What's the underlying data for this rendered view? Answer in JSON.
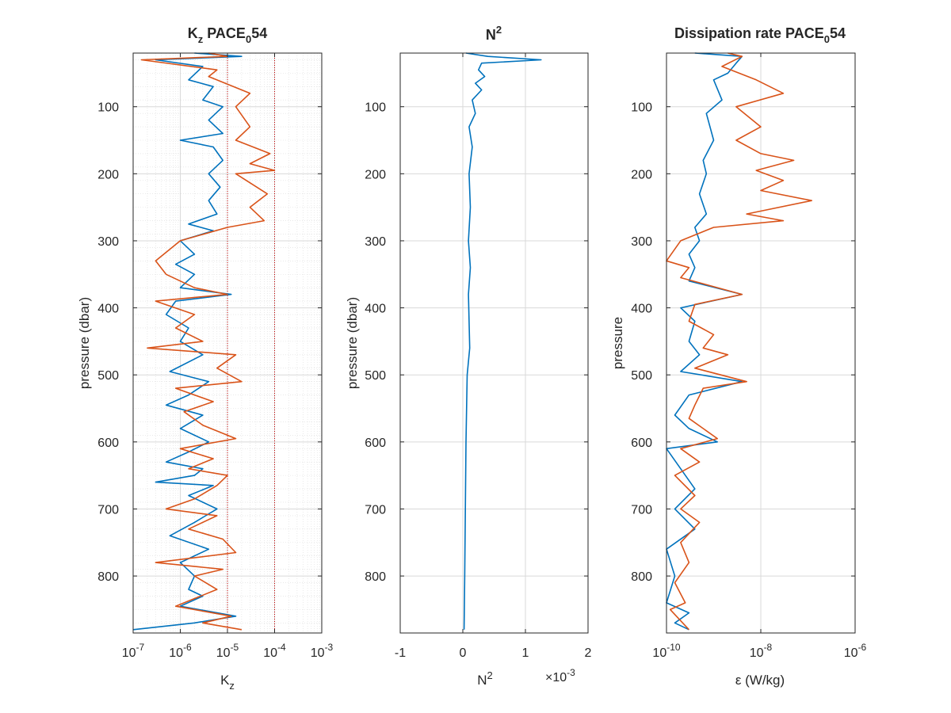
{
  "colors": {
    "series1": "#0072BD",
    "series2": "#D95319",
    "axes": "#262626",
    "grid": "#d9d9d9",
    "ref_lines": "#cc0000"
  },
  "chart_data": [
    {
      "type": "line",
      "title": {
        "main": "K",
        "sub": "z",
        "rest": " PACE",
        "sub2": "0",
        "rest2": "54"
      },
      "xlabel": {
        "main": "K",
        "sub": "z"
      },
      "ylabel": "pressure (dbar)",
      "xscale": "log",
      "xlim": [
        1e-07,
        0.001
      ],
      "ylim": [
        20,
        885
      ],
      "y_reversed": true,
      "xticks": [
        {
          "v": 1e-07,
          "m": "10",
          "e": "-7"
        },
        {
          "v": 1e-06,
          "m": "10",
          "e": "-6"
        },
        {
          "v": 1e-05,
          "m": "10",
          "e": "-5"
        },
        {
          "v": 0.0001,
          "m": "10",
          "e": "-4"
        },
        {
          "v": 0.001,
          "m": "10",
          "e": "-3"
        }
      ],
      "yticks": [
        100,
        200,
        300,
        400,
        500,
        600,
        700,
        800
      ],
      "grid": "major+minor",
      "reference_lines_x": [
        1e-05,
        0.0001
      ],
      "series": [
        {
          "color_key": "series1",
          "points": [
            [
              2e-06,
              20
            ],
            [
              2e-05,
              25
            ],
            [
              3e-07,
              30
            ],
            [
              3e-06,
              40
            ],
            [
              1.5e-06,
              60
            ],
            [
              5e-06,
              70
            ],
            [
              3e-06,
              90
            ],
            [
              8e-06,
              100
            ],
            [
              4e-06,
              120
            ],
            [
              8e-06,
              140
            ],
            [
              1e-06,
              150
            ],
            [
              5e-06,
              160
            ],
            [
              8e-06,
              180
            ],
            [
              4e-06,
              200
            ],
            [
              7e-06,
              220
            ],
            [
              4e-06,
              240
            ],
            [
              6e-06,
              260
            ],
            [
              1.5e-06,
              275
            ],
            [
              5e-06,
              285
            ],
            [
              1e-06,
              300
            ],
            [
              2e-06,
              320
            ],
            [
              8e-07,
              335
            ],
            [
              2e-06,
              350
            ],
            [
              1e-06,
              370
            ],
            [
              1.2e-05,
              380
            ],
            [
              8e-07,
              390
            ],
            [
              5e-07,
              410
            ],
            [
              1.5e-06,
              430
            ],
            [
              1e-06,
              450
            ],
            [
              3e-06,
              470
            ],
            [
              6e-07,
              495
            ],
            [
              4e-06,
              510
            ],
            [
              1.5e-06,
              530
            ],
            [
              5e-07,
              545
            ],
            [
              3e-06,
              560
            ],
            [
              1e-06,
              580
            ],
            [
              4e-06,
              600
            ],
            [
              1.5e-06,
              615
            ],
            [
              5e-07,
              630
            ],
            [
              3e-06,
              640
            ],
            [
              2e-06,
              650
            ],
            [
              3e-07,
              660
            ],
            [
              5e-06,
              665
            ],
            [
              1.5e-06,
              680
            ],
            [
              6e-06,
              700
            ],
            [
              2e-06,
              720
            ],
            [
              6e-07,
              740
            ],
            [
              4e-06,
              760
            ],
            [
              1e-06,
              780
            ],
            [
              2e-06,
              800
            ],
            [
              1.5e-06,
              820
            ],
            [
              3e-06,
              830
            ],
            [
              1e-06,
              845
            ],
            [
              1.5e-05,
              860
            ],
            [
              2e-06,
              870
            ],
            [
              1e-07,
              880
            ]
          ]
        },
        {
          "color_key": "series2",
          "points": [
            [
              4e-06,
              20
            ],
            [
              1e-05,
              25
            ],
            [
              1.5e-07,
              30
            ],
            [
              6e-06,
              45
            ],
            [
              4e-06,
              55
            ],
            [
              3e-05,
              80
            ],
            [
              1.5e-05,
              100
            ],
            [
              3e-05,
              130
            ],
            [
              1.5e-05,
              150
            ],
            [
              8e-05,
              170
            ],
            [
              3e-05,
              185
            ],
            [
              0.0001,
              195
            ],
            [
              1.5e-05,
              200
            ],
            [
              7e-05,
              230
            ],
            [
              3e-05,
              250
            ],
            [
              6e-05,
              270
            ],
            [
              1e-05,
              280
            ],
            [
              1e-06,
              300
            ],
            [
              3e-07,
              330
            ],
            [
              5e-07,
              350
            ],
            [
              2e-06,
              370
            ],
            [
              1e-05,
              380
            ],
            [
              3e-07,
              390
            ],
            [
              2e-06,
              410
            ],
            [
              8e-07,
              430
            ],
            [
              3e-06,
              450
            ],
            [
              2e-07,
              460
            ],
            [
              1.5e-05,
              470
            ],
            [
              6e-06,
              490
            ],
            [
              2e-05,
              510
            ],
            [
              8e-07,
              520
            ],
            [
              5e-06,
              540
            ],
            [
              1.2e-06,
              555
            ],
            [
              3e-06,
              575
            ],
            [
              1.5e-05,
              595
            ],
            [
              1e-06,
              610
            ],
            [
              5e-06,
              625
            ],
            [
              1.5e-06,
              640
            ],
            [
              1e-05,
              650
            ],
            [
              6e-06,
              665
            ],
            [
              2e-06,
              685
            ],
            [
              5e-07,
              700
            ],
            [
              6e-06,
              710
            ],
            [
              1.5e-06,
              730
            ],
            [
              8e-06,
              745
            ],
            [
              1.5e-05,
              765
            ],
            [
              3e-07,
              780
            ],
            [
              8e-06,
              790
            ],
            [
              2e-06,
              800
            ],
            [
              6e-06,
              820
            ],
            [
              8e-07,
              845
            ],
            [
              1.2e-05,
              860
            ],
            [
              3e-06,
              870
            ],
            [
              2e-05,
              880
            ]
          ]
        }
      ]
    },
    {
      "type": "line",
      "title": {
        "main": "N",
        "sup": "2"
      },
      "xlabel": {
        "main": "N",
        "sup": "2"
      },
      "ylabel": "pressure (dbar)",
      "multiplier": {
        "pre": "×10",
        "exp": "-3"
      },
      "xscale": "linear",
      "xlim": [
        -1,
        2
      ],
      "ylim": [
        20,
        885
      ],
      "y_reversed": true,
      "xticks": [
        {
          "v": -1,
          "t": "-1"
        },
        {
          "v": 0,
          "t": "0"
        },
        {
          "v": 1,
          "t": "1"
        },
        {
          "v": 2,
          "t": "2"
        }
      ],
      "yticks": [
        100,
        200,
        300,
        400,
        500,
        600,
        700,
        800
      ],
      "grid": "major",
      "series": [
        {
          "color_key": "series1",
          "points": [
            [
              0.05,
              20
            ],
            [
              0.4,
              25
            ],
            [
              1.25,
              30
            ],
            [
              0.3,
              35
            ],
            [
              0.25,
              45
            ],
            [
              0.35,
              55
            ],
            [
              0.2,
              65
            ],
            [
              0.3,
              75
            ],
            [
              0.15,
              90
            ],
            [
              0.2,
              110
            ],
            [
              0.1,
              130
            ],
            [
              0.15,
              160
            ],
            [
              0.1,
              200
            ],
            [
              0.12,
              250
            ],
            [
              0.09,
              300
            ],
            [
              0.12,
              340
            ],
            [
              0.09,
              380
            ],
            [
              0.1,
              420
            ],
            [
              0.11,
              460
            ],
            [
              0.07,
              500
            ],
            [
              0.05,
              600
            ],
            [
              0.04,
              700
            ],
            [
              0.03,
              800
            ],
            [
              0.02,
              880
            ]
          ]
        }
      ]
    },
    {
      "type": "line",
      "title": {
        "main": "Dissipation rate PACE",
        "sub": "0",
        "rest": "54"
      },
      "xlabel": {
        "main": "ε (W/kg)"
      },
      "ylabel": "pressure",
      "xscale": "log",
      "xlim": [
        1e-10,
        1e-06
      ],
      "ylim": [
        20,
        885
      ],
      "y_reversed": true,
      "xticks": [
        {
          "v": 1e-10,
          "m": "10",
          "e": "-10"
        },
        {
          "v": 1e-08,
          "m": "10",
          "e": "-8"
        },
        {
          "v": 1e-06,
          "m": "10",
          "e": "-6"
        }
      ],
      "yticks": [
        100,
        200,
        300,
        400,
        500,
        600,
        700,
        800
      ],
      "grid": "major",
      "series": [
        {
          "color_key": "series1",
          "points": [
            [
              4e-10,
              20
            ],
            [
              4e-09,
              25
            ],
            [
              3e-09,
              35
            ],
            [
              2e-09,
              50
            ],
            [
              1e-09,
              60
            ],
            [
              1.5e-09,
              90
            ],
            [
              7e-10,
              110
            ],
            [
              1e-09,
              150
            ],
            [
              6e-10,
              180
            ],
            [
              7e-10,
              200
            ],
            [
              5e-10,
              230
            ],
            [
              7e-10,
              260
            ],
            [
              4e-10,
              280
            ],
            [
              5e-10,
              300
            ],
            [
              3e-10,
              320
            ],
            [
              4e-10,
              340
            ],
            [
              3e-10,
              360
            ],
            [
              4e-09,
              380
            ],
            [
              2e-10,
              400
            ],
            [
              4e-10,
              420
            ],
            [
              3e-10,
              450
            ],
            [
              5e-10,
              470
            ],
            [
              2e-10,
              495
            ],
            [
              4e-09,
              510
            ],
            [
              3e-10,
              530
            ],
            [
              1.5e-10,
              560
            ],
            [
              3e-10,
              580
            ],
            [
              1.2e-09,
              600
            ],
            [
              1e-10,
              610
            ],
            [
              2e-10,
              640
            ],
            [
              4e-10,
              670
            ],
            [
              1.5e-10,
              700
            ],
            [
              4e-10,
              730
            ],
            [
              1e-10,
              760
            ],
            [
              1.5e-10,
              800
            ],
            [
              1e-10,
              840
            ],
            [
              3e-10,
              855
            ],
            [
              1.5e-10,
              870
            ],
            [
              3e-10,
              880
            ]
          ]
        },
        {
          "color_key": "series2",
          "points": [
            [
              2e-09,
              20
            ],
            [
              4e-09,
              25
            ],
            [
              1.5e-09,
              40
            ],
            [
              8e-09,
              60
            ],
            [
              3e-08,
              80
            ],
            [
              3e-09,
              100
            ],
            [
              1e-08,
              130
            ],
            [
              3e-09,
              150
            ],
            [
              1e-08,
              170
            ],
            [
              5e-08,
              180
            ],
            [
              8e-09,
              195
            ],
            [
              3e-08,
              210
            ],
            [
              1e-08,
              225
            ],
            [
              1.2e-07,
              240
            ],
            [
              5e-09,
              260
            ],
            [
              3e-08,
              270
            ],
            [
              1e-09,
              280
            ],
            [
              2e-10,
              300
            ],
            [
              1e-10,
              330
            ],
            [
              3e-10,
              340
            ],
            [
              2e-10,
              355
            ],
            [
              4e-09,
              380
            ],
            [
              4e-10,
              395
            ],
            [
              3e-10,
              420
            ],
            [
              1e-09,
              440
            ],
            [
              6e-10,
              460
            ],
            [
              2e-09,
              470
            ],
            [
              4e-10,
              490
            ],
            [
              5e-09,
              510
            ],
            [
              6e-10,
              520
            ],
            [
              4e-10,
              545
            ],
            [
              3e-10,
              565
            ],
            [
              1.2e-09,
              595
            ],
            [
              2e-10,
              610
            ],
            [
              5e-10,
              630
            ],
            [
              1.5e-10,
              650
            ],
            [
              4e-10,
              680
            ],
            [
              2e-10,
              700
            ],
            [
              5e-10,
              720
            ],
            [
              2e-10,
              750
            ],
            [
              3e-10,
              780
            ],
            [
              1.5e-10,
              810
            ],
            [
              2.5e-10,
              840
            ],
            [
              1.2e-10,
              850
            ],
            [
              3e-10,
              880
            ]
          ]
        }
      ]
    }
  ]
}
